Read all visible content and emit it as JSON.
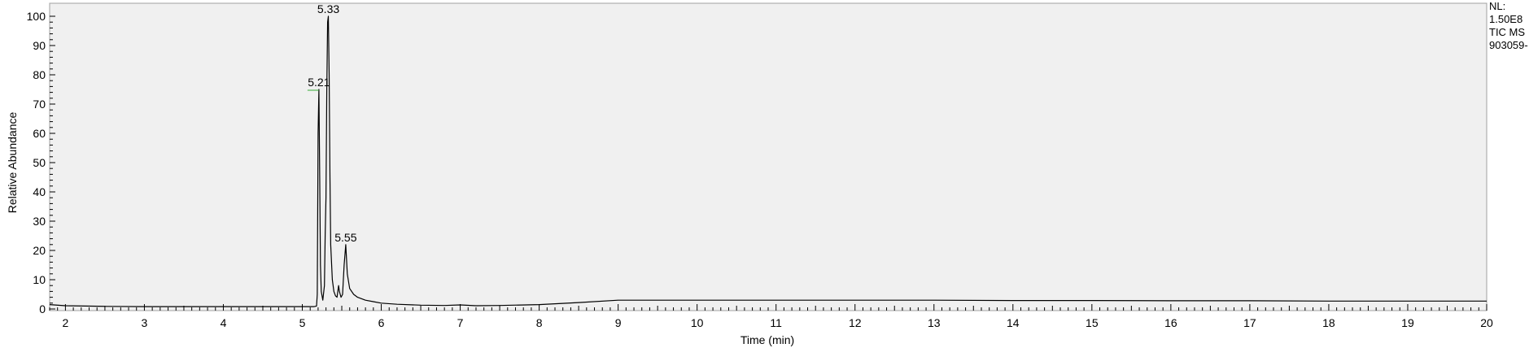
{
  "chart_data": {
    "type": "line",
    "xlabel": "Time (min)",
    "ylabel": "Relative Abundance",
    "xlim": [
      1.8,
      20
    ],
    "ylim": [
      0,
      100
    ],
    "x_ticks": [
      2,
      3,
      4,
      5,
      6,
      7,
      8,
      9,
      10,
      11,
      12,
      13,
      14,
      15,
      16,
      17,
      18,
      19,
      20
    ],
    "y_ticks": [
      0,
      10,
      20,
      30,
      40,
      50,
      60,
      70,
      80,
      90,
      100
    ],
    "grid": false,
    "colors": {
      "trace": "#000000",
      "plot_background": "#f0f0f0",
      "peak_marker": "#33aa33"
    },
    "peak_labels": [
      {
        "label": "5.21",
        "x": 5.21,
        "y": 75
      },
      {
        "label": "5.33",
        "x": 5.33,
        "y": 100
      },
      {
        "label": "5.55",
        "x": 5.55,
        "y": 22
      }
    ],
    "series": [
      {
        "x": [
          1.8,
          2.0,
          2.5,
          3.0,
          3.5,
          4.0,
          4.5,
          5.0,
          5.15,
          5.18,
          5.19,
          5.2,
          5.21,
          5.22,
          5.23,
          5.24,
          5.26,
          5.28,
          5.29,
          5.3,
          5.31,
          5.32,
          5.33,
          5.34,
          5.35,
          5.36,
          5.38,
          5.4,
          5.42,
          5.44,
          5.46,
          5.47,
          5.49,
          5.51,
          5.53,
          5.55,
          5.57,
          5.6,
          5.65,
          5.7,
          5.8,
          5.9,
          6.0,
          6.2,
          6.5,
          6.8,
          7.0,
          7.2,
          7.5,
          8.0,
          8.5,
          9.0,
          10.0,
          11.0,
          12.0,
          13.0,
          14.0,
          15.0,
          16.0,
          17.0,
          18.0,
          19.0,
          20.0
        ],
        "y": [
          1.5,
          1.1,
          0.9,
          0.8,
          0.8,
          0.8,
          0.8,
          0.8,
          0.8,
          1.0,
          5.0,
          60.0,
          75.0,
          45.0,
          15.0,
          6.0,
          3.0,
          8.0,
          25.0,
          38.0,
          75.0,
          98.0,
          100.0,
          80.0,
          45.0,
          22.0,
          10.0,
          6.0,
          4.5,
          4.0,
          8.0,
          6.0,
          4.0,
          5.0,
          15.0,
          22.0,
          12.0,
          7.0,
          5.0,
          4.0,
          3.0,
          2.5,
          2.0,
          1.6,
          1.3,
          1.2,
          1.4,
          1.1,
          1.2,
          1.5,
          2.2,
          3.0,
          3.0,
          3.0,
          3.0,
          3.0,
          2.9,
          2.9,
          2.8,
          2.8,
          2.7,
          2.7,
          2.7
        ]
      }
    ]
  },
  "info": {
    "line1": "NL:",
    "line2": "1.50E8",
    "line3": "TIC  MS",
    "line4": "903059-"
  }
}
